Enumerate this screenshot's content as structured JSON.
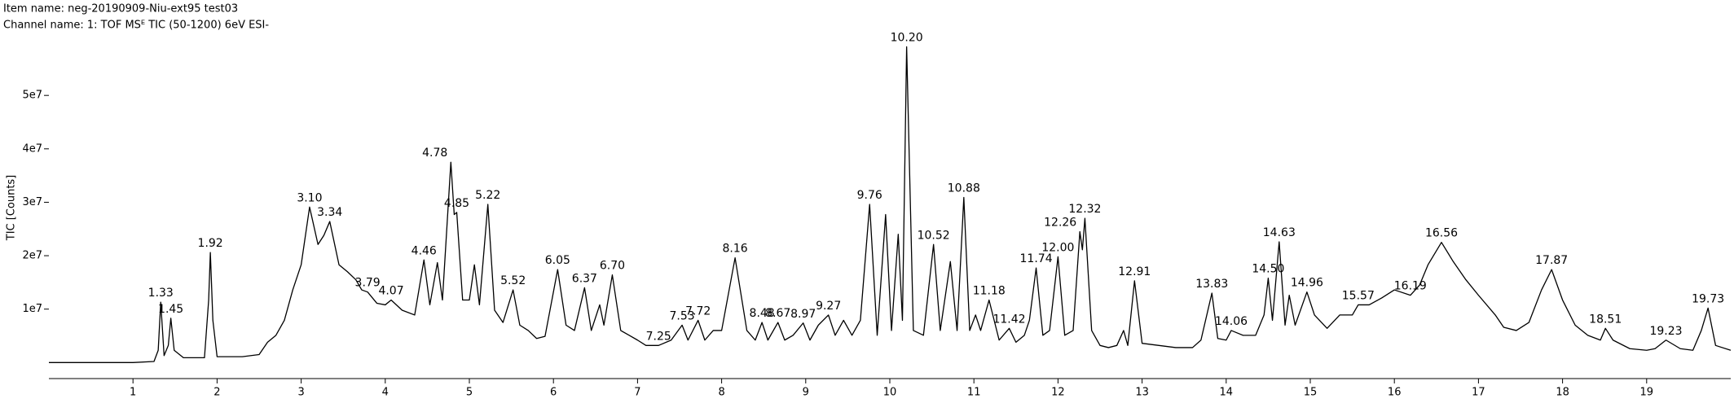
{
  "header": {
    "item_name": "Item name: neg-20190909-Niu-ext95 test03",
    "channel_name": "Channel name: 1: TOF MSᴱ TIC (50-1200) 6eV ESI-"
  },
  "chart_data": {
    "type": "line",
    "ylabel": "TIC [Counts]",
    "color": "#000000",
    "xlim": [
      0,
      20
    ],
    "xticks": [
      1,
      2,
      3,
      4,
      5,
      6,
      7,
      8,
      9,
      10,
      11,
      12,
      13,
      14,
      15,
      16,
      17,
      18,
      19
    ],
    "ylim": [
      -3000000,
      61000000
    ],
    "yticks": [
      {
        "value": 10000000,
        "label": "1e7"
      },
      {
        "value": 20000000,
        "label": "2e7"
      },
      {
        "value": 30000000,
        "label": "3e7"
      },
      {
        "value": 40000000,
        "label": "4e7"
      },
      {
        "value": 50000000,
        "label": "5e7"
      }
    ],
    "x": [
      0,
      0.5,
      1.0,
      1.25,
      1.3,
      1.33,
      1.37,
      1.42,
      1.45,
      1.49,
      1.6,
      1.85,
      1.9,
      1.92,
      1.95,
      2.0,
      2.3,
      2.5,
      2.6,
      2.7,
      2.8,
      2.9,
      3.0,
      3.1,
      3.2,
      3.27,
      3.34,
      3.45,
      3.55,
      3.65,
      3.72,
      3.79,
      3.9,
      4.0,
      4.07,
      4.2,
      4.35,
      4.46,
      4.53,
      4.62,
      4.68,
      4.78,
      4.82,
      4.85,
      4.92,
      5.0,
      5.06,
      5.12,
      5.22,
      5.3,
      5.4,
      5.52,
      5.6,
      5.7,
      5.8,
      5.9,
      6.05,
      6.15,
      6.25,
      6.37,
      6.45,
      6.55,
      6.6,
      6.7,
      6.8,
      6.9,
      7.0,
      7.1,
      7.25,
      7.4,
      7.53,
      7.6,
      7.72,
      7.8,
      7.9,
      8.0,
      8.16,
      8.3,
      8.4,
      8.48,
      8.55,
      8.67,
      8.75,
      8.85,
      8.97,
      9.05,
      9.15,
      9.27,
      9.35,
      9.45,
      9.55,
      9.65,
      9.76,
      9.85,
      9.95,
      10.02,
      10.1,
      10.15,
      10.2,
      10.28,
      10.4,
      10.52,
      10.6,
      10.72,
      10.8,
      10.88,
      10.95,
      11.02,
      11.08,
      11.18,
      11.3,
      11.42,
      11.5,
      11.6,
      11.66,
      11.74,
      11.82,
      11.9,
      12.0,
      12.08,
      12.18,
      12.26,
      12.29,
      12.32,
      12.4,
      12.5,
      12.6,
      12.7,
      12.78,
      12.83,
      12.91,
      13.0,
      13.2,
      13.4,
      13.6,
      13.7,
      13.83,
      13.9,
      14.0,
      14.06,
      14.2,
      14.35,
      14.45,
      14.5,
      14.55,
      14.63,
      14.7,
      14.75,
      14.82,
      14.96,
      15.05,
      15.2,
      15.35,
      15.5,
      15.57,
      15.7,
      15.85,
      16.0,
      16.19,
      16.3,
      16.4,
      16.56,
      16.7,
      16.85,
      17.0,
      17.2,
      17.3,
      17.45,
      17.6,
      17.75,
      17.87,
      18.0,
      18.15,
      18.3,
      18.45,
      18.51,
      18.6,
      18.8,
      19.0,
      19.1,
      19.23,
      19.4,
      19.55,
      19.65,
      19.73,
      19.82,
      20.0
    ],
    "values": [
      0,
      0,
      0,
      200000.0,
      2300000.0,
      11300000.0,
      1300000.0,
      3200000.0,
      8300000.0,
      2300000.0,
      900000.0,
      900000.0,
      11700000.0,
      20600000.0,
      7900000.0,
      1100000.0,
      1100000.0,
      1500000.0,
      3800000.0,
      5100000.0,
      7900000.0,
      13600000.0,
      18300000.0,
      29100000.0,
      22100000.0,
      23800000.0,
      26400000.0,
      18300000.0,
      17000000.0,
      15500000.0,
      13600000.0,
      13200000.0,
      11100000.0,
      10800000.0,
      11700000.0,
      9800000.0,
      8900000.0,
      19200000.0,
      10800000.0,
      18700000.0,
      11700000.0,
      37500000.0,
      27700000.0,
      28100000.0,
      11700000.0,
      11700000.0,
      18300000.0,
      10800000.0,
      29600000.0,
      9800000.0,
      7500000.0,
      13600000.0,
      7000000.0,
      6000000.0,
      4500000.0,
      4900000.0,
      17400000.0,
      7000000.0,
      6000000.0,
      14000000.0,
      6000000.0,
      10800000.0,
      7000000.0,
      16400000.0,
      6000000.0,
      5100000.0,
      4200000.0,
      3200000.0,
      3200000.0,
      4200000.0,
      7000000.0,
      4200000.0,
      7900000.0,
      4200000.0,
      6000000.0,
      6000000.0,
      19600000.0,
      6000000.0,
      4200000.0,
      7500000.0,
      4200000.0,
      7500000.0,
      4200000.0,
      5100000.0,
      7400000.0,
      4200000.0,
      7000000.0,
      8900000.0,
      5100000.0,
      7900000.0,
      5100000.0,
      7900000.0,
      29600000.0,
      5100000.0,
      27700000.0,
      6000000.0,
      24000000.0,
      7900000.0,
      59100000.0,
      6000000.0,
      5100000.0,
      22100000.0,
      6000000.0,
      18900000.0,
      6000000.0,
      30900000.0,
      6000000.0,
      8900000.0,
      6000000.0,
      11700000.0,
      4200000.0,
      6400000.0,
      3800000.0,
      5100000.0,
      7900000.0,
      17700000.0,
      5100000.0,
      6000000.0,
      19800000.0,
      5100000.0,
      6000000.0,
      24500000.0,
      21100000.0,
      27000000.0,
      6000000.0,
      3200000.0,
      2800000.0,
      3200000.0,
      6000000.0,
      3200000.0,
      15300000.0,
      3600000.0,
      3200000.0,
      2800000.0,
      2800000.0,
      4200000.0,
      13000000.0,
      4500000.0,
      4200000.0,
      6000000.0,
      5100000.0,
      5100000.0,
      8900000.0,
      15800000.0,
      7900000.0,
      22600000.0,
      7000000.0,
      12600000.0,
      7000000.0,
      13200000.0,
      8900000.0,
      6400000.0,
      8900000.0,
      8900000.0,
      10800000.0,
      10800000.0,
      12100000.0,
      13600000.0,
      12600000.0,
      14500000.0,
      18300000.0,
      22500000.0,
      18900000.0,
      15500000.0,
      12600000.0,
      8900000.0,
      6600000.0,
      6000000.0,
      7500000.0,
      13600000.0,
      17400000.0,
      11700000.0,
      7000000.0,
      5100000.0,
      4200000.0,
      6400000.0,
      4200000.0,
      2600000.0,
      2300000.0,
      2600000.0,
      4200000.0,
      2600000.0,
      2300000.0,
      6000000.0,
      10200000.0,
      3200000.0,
      2300000.0
    ],
    "peak_labels": [
      {
        "value": 1.33,
        "label": "1.33"
      },
      {
        "value": 1.45,
        "label": "1.45"
      },
      {
        "value": 1.92,
        "label": "1.92"
      },
      {
        "value": 3.1,
        "label": "3.10"
      },
      {
        "value": 3.34,
        "label": "3.34"
      },
      {
        "value": 3.79,
        "label": "3.79"
      },
      {
        "value": 4.07,
        "label": "4.07"
      },
      {
        "value": 4.46,
        "label": "4.46"
      },
      {
        "value": 4.78,
        "label": "4.78"
      },
      {
        "value": 4.85,
        "label": "4.85"
      },
      {
        "value": 5.22,
        "label": "5.22"
      },
      {
        "value": 5.52,
        "label": "5.52"
      },
      {
        "value": 6.05,
        "label": "6.05"
      },
      {
        "value": 6.37,
        "label": "6.37"
      },
      {
        "value": 6.7,
        "label": "6.70"
      },
      {
        "value": 7.25,
        "label": "7.25"
      },
      {
        "value": 7.53,
        "label": "7.53"
      },
      {
        "value": 7.72,
        "label": "7.72"
      },
      {
        "value": 8.16,
        "label": "8.16"
      },
      {
        "value": 8.48,
        "label": "8.48"
      },
      {
        "value": 8.67,
        "label": "8.67"
      },
      {
        "value": 8.97,
        "label": "8.97"
      },
      {
        "value": 9.27,
        "label": "9.27"
      },
      {
        "value": 9.76,
        "label": "9.76"
      },
      {
        "value": 10.2,
        "label": "10.20"
      },
      {
        "value": 10.52,
        "label": "10.52"
      },
      {
        "value": 10.88,
        "label": "10.88"
      },
      {
        "value": 11.18,
        "label": "11.18"
      },
      {
        "value": 11.42,
        "label": "11.42"
      },
      {
        "value": 11.74,
        "label": "11.74"
      },
      {
        "value": 12.0,
        "label": "12.00"
      },
      {
        "value": 12.26,
        "label": "12.26"
      },
      {
        "value": 12.32,
        "label": "12.32"
      },
      {
        "value": 12.91,
        "label": "12.91"
      },
      {
        "value": 13.83,
        "label": "13.83"
      },
      {
        "value": 14.06,
        "label": "14.06"
      },
      {
        "value": 14.5,
        "label": "14.50"
      },
      {
        "value": 14.63,
        "label": "14.63"
      },
      {
        "value": 14.96,
        "label": "14.96"
      },
      {
        "value": 15.57,
        "label": "15.57"
      },
      {
        "value": 16.19,
        "label": "16.19"
      },
      {
        "value": 16.56,
        "label": "16.56"
      },
      {
        "value": 17.87,
        "label": "17.87"
      },
      {
        "value": 18.51,
        "label": "18.51"
      },
      {
        "value": 19.23,
        "label": "19.23"
      },
      {
        "value": 19.73,
        "label": "19.73"
      }
    ]
  }
}
